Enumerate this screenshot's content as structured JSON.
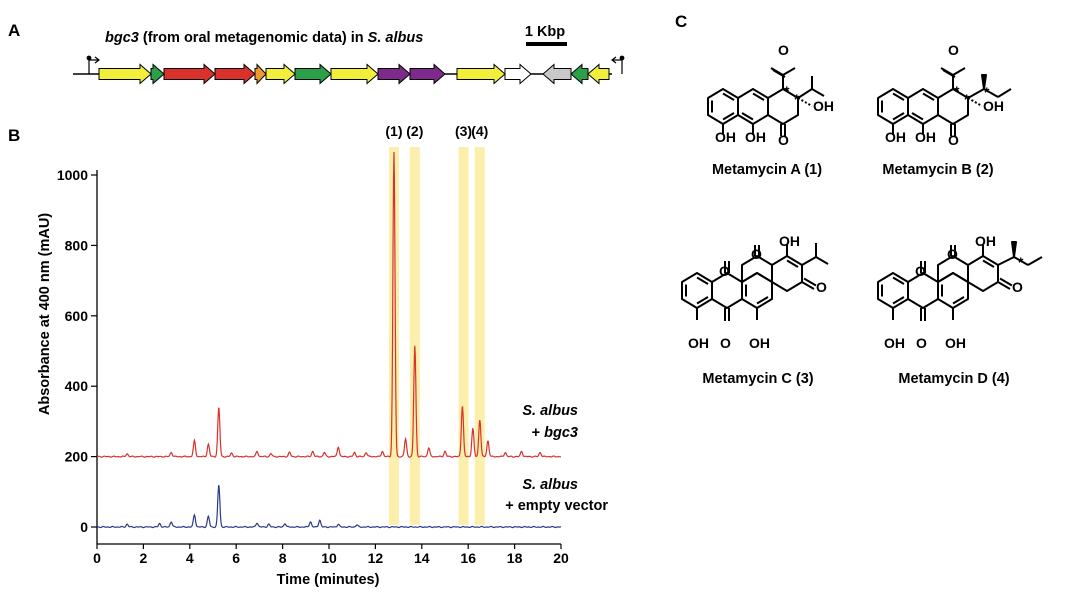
{
  "panels": {
    "a": "A",
    "b": "B",
    "c": "C"
  },
  "gene_cluster": {
    "title_gene": "bgc3",
    "title_middle": " (from oral metagenomic data) in ",
    "title_host": "S. albus",
    "scale_label": "1 Kbp",
    "genes": [
      {
        "color": "#f2ef3b",
        "dir": "right"
      },
      {
        "color": "#2ca049",
        "dir": "right"
      },
      {
        "color": "#d9322c",
        "dir": "right"
      },
      {
        "color": "#d9322c",
        "dir": "right"
      },
      {
        "color": "#ef9a2b",
        "dir": "right"
      },
      {
        "color": "#f2ef3b",
        "dir": "right"
      },
      {
        "color": "#2ca049",
        "dir": "right"
      },
      {
        "color": "#f2ef3b",
        "dir": "right"
      },
      {
        "color": "#7e2a8c",
        "dir": "right"
      },
      {
        "color": "#7e2a8c",
        "dir": "right"
      },
      {
        "color": "#f2ef3b",
        "dir": "right"
      },
      {
        "color": "#ffffff",
        "dir": "right"
      },
      {
        "color": "#c8c8c8",
        "dir": "left"
      },
      {
        "color": "#2ca049",
        "dir": "left"
      },
      {
        "color": "#f2ef3b",
        "dir": "left"
      }
    ]
  },
  "chart_data": {
    "type": "line",
    "xlabel": "Time (minutes)",
    "ylabel": "Absorbance at 400 nm (mAU)",
    "xlim": [
      0,
      20
    ],
    "ylim": [
      -30,
      1050
    ],
    "xticks": [
      0,
      2,
      4,
      6,
      8,
      10,
      12,
      14,
      16,
      18,
      20
    ],
    "yticks": [
      0,
      200,
      400,
      600,
      800,
      1000
    ],
    "highlights": [
      {
        "label": "(1)",
        "x": 12.8
      },
      {
        "label": "(2)",
        "x": 13.7
      },
      {
        "label": "(3)",
        "x": 15.8
      },
      {
        "label": "(4)",
        "x": 16.5
      }
    ],
    "series": [
      {
        "name_line1": "S. albus",
        "name_line2": "+ bgc3",
        "color": "#d9322c",
        "baseline": 200,
        "peaks": [
          [
            1.3,
            8
          ],
          [
            3.2,
            12
          ],
          [
            4.2,
            45
          ],
          [
            4.8,
            35
          ],
          [
            5.25,
            140
          ],
          [
            5.8,
            10
          ],
          [
            6.9,
            15
          ],
          [
            7.5,
            8
          ],
          [
            8.3,
            12
          ],
          [
            9.3,
            15
          ],
          [
            9.8,
            12
          ],
          [
            10.4,
            28
          ],
          [
            11.1,
            12
          ],
          [
            11.6,
            12
          ],
          [
            12.3,
            15
          ],
          [
            12.8,
            865
          ],
          [
            13.3,
            50
          ],
          [
            13.7,
            315
          ],
          [
            14.3,
            25
          ],
          [
            15.0,
            15
          ],
          [
            15.75,
            145
          ],
          [
            16.2,
            80
          ],
          [
            16.5,
            105
          ],
          [
            16.85,
            45
          ],
          [
            17.6,
            12
          ],
          [
            18.3,
            15
          ],
          [
            19.1,
            12
          ]
        ]
      },
      {
        "name_line1": "S. albus",
        "name_line2": "+ empty vector",
        "color": "#2c3a88",
        "baseline": 0,
        "peaks": [
          [
            1.3,
            8
          ],
          [
            2.7,
            10
          ],
          [
            3.2,
            15
          ],
          [
            4.2,
            35
          ],
          [
            4.8,
            30
          ],
          [
            5.25,
            120
          ],
          [
            6.9,
            12
          ],
          [
            7.4,
            8
          ],
          [
            8.1,
            10
          ],
          [
            9.2,
            15
          ],
          [
            9.6,
            20
          ],
          [
            10.4,
            8
          ],
          [
            11.2,
            6
          ]
        ]
      }
    ]
  },
  "structures": {
    "a": {
      "name": "Metamycin A (1)",
      "substituent": "isopropyl"
    },
    "b": {
      "name": "Metamycin B (2)",
      "substituent": "sec-butyl"
    },
    "c": {
      "name": "Metamycin C (3)",
      "substituent": "isopropyl"
    },
    "d": {
      "name": "Metamycin D (4)",
      "substituent": "sec-butyl"
    },
    "atoms": {
      "oh": "OH",
      "o": "O",
      "star": "*"
    }
  },
  "icons": [
    "promoter-arrow-icon",
    "gene-arrow-icon",
    "scale-bar-icon"
  ]
}
